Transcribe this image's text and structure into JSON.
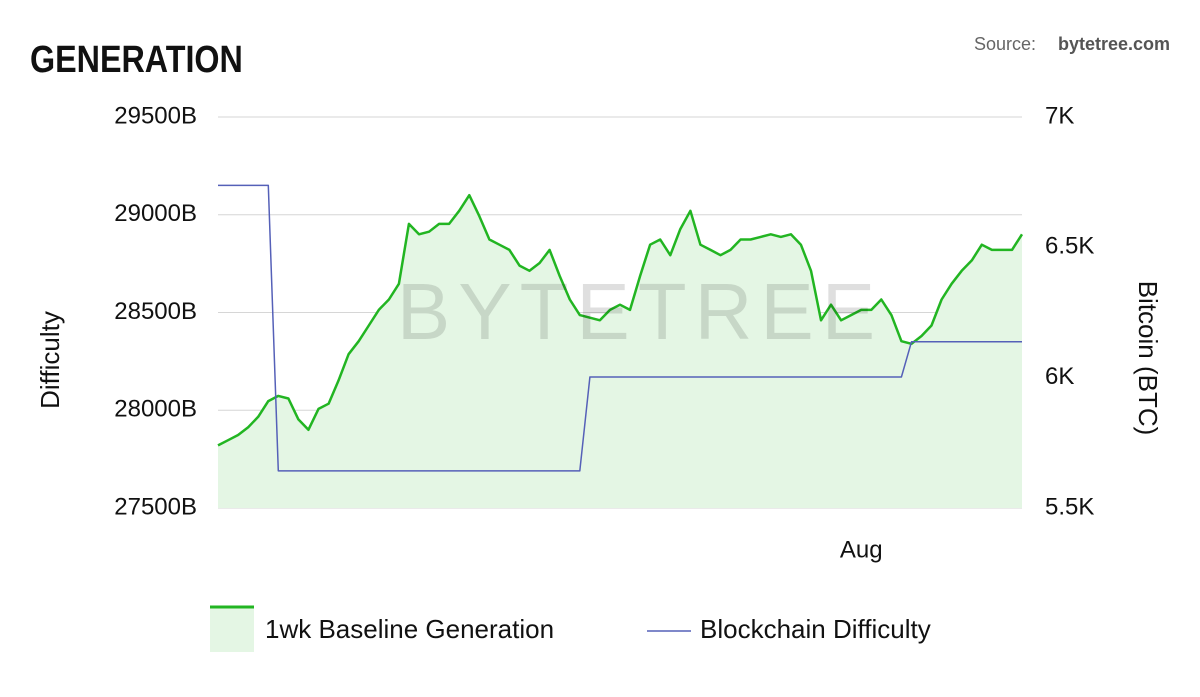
{
  "chart_data": {
    "type": "line",
    "title": "GENERATION",
    "source_label": "Source:",
    "source_site": "bytetree.com",
    "watermark": "BYTETREE",
    "y_label": "Difficulty",
    "y2_label": "Bitcoin (BTC)",
    "categories": [
      null,
      null,
      null,
      null,
      null,
      null,
      null,
      null,
      null,
      null,
      null,
      null,
      null,
      null,
      null,
      null,
      null,
      null,
      null,
      null,
      null,
      null,
      null,
      null,
      null,
      null,
      null,
      null,
      null,
      null,
      null,
      null,
      null,
      null,
      null,
      null,
      null,
      null,
      null,
      null,
      null,
      null,
      null,
      null,
      null,
      null,
      null,
      null,
      null,
      null,
      null,
      null,
      null,
      null,
      null,
      null,
      null,
      null,
      null,
      null,
      null,
      null,
      null,
      null,
      "Aug",
      null,
      null,
      null,
      null,
      null,
      null,
      null,
      null,
      null,
      null,
      null,
      null,
      null,
      null,
      null,
      null
    ],
    "ylim": [
      27500,
      29500
    ],
    "yticks": [
      {
        "value": 27500,
        "label": "27500B"
      },
      {
        "value": 28000,
        "label": "28000B"
      },
      {
        "value": 28500,
        "label": "28500B"
      },
      {
        "value": 29000,
        "label": "29000B"
      },
      {
        "value": 29500,
        "label": "29500B"
      }
    ],
    "y2lim": [
      5500,
      7000
    ],
    "y2ticks": [
      {
        "value": 5500,
        "label": "5.5K"
      },
      {
        "value": 6000,
        "label": "6K"
      },
      {
        "value": 6500,
        "label": "6.5K"
      },
      {
        "value": 7000,
        "label": "7K"
      }
    ],
    "grid": true,
    "series": [
      {
        "name": "1wk Baseline Generation",
        "color": "#22b522",
        "fill": "#e4f6e4",
        "axis": "y2",
        "values": [
          5740,
          5760,
          5780,
          5810,
          5850,
          5910,
          5930,
          5920,
          5840,
          5800,
          5880,
          5900,
          5990,
          6090,
          6140,
          6200,
          6260,
          6300,
          6360,
          6590,
          6550,
          6560,
          6590,
          6590,
          6640,
          6700,
          6620,
          6530,
          6510,
          6490,
          6430,
          6410,
          6440,
          6490,
          6390,
          6300,
          6240,
          6230,
          6220,
          6260,
          6280,
          6260,
          6390,
          6510,
          6530,
          6470,
          6570,
          6640,
          6510,
          6490,
          6470,
          6490,
          6530,
          6530,
          6540,
          6550,
          6540,
          6550,
          6510,
          6410,
          6220,
          6280,
          6220,
          6240,
          6260,
          6260,
          6300,
          6240,
          6140,
          6130,
          6160,
          6200,
          6300,
          6360,
          6410,
          6450,
          6510,
          6490,
          6490,
          6490,
          6550
        ]
      },
      {
        "name": "Blockchain Difficulty",
        "color": "#5560b8",
        "axis": "y",
        "values": [
          29150,
          29150,
          29150,
          29150,
          29150,
          29150,
          27690,
          27690,
          27690,
          27690,
          27690,
          27690,
          27690,
          27690,
          27690,
          27690,
          27690,
          27690,
          27690,
          27690,
          27690,
          27690,
          27690,
          27690,
          27690,
          27690,
          27690,
          27690,
          27690,
          27690,
          27690,
          27690,
          27690,
          27690,
          27690,
          27690,
          27690,
          28170,
          28170,
          28170,
          28170,
          28170,
          28170,
          28170,
          28170,
          28170,
          28170,
          28170,
          28170,
          28170,
          28170,
          28170,
          28170,
          28170,
          28170,
          28170,
          28170,
          28170,
          28170,
          28170,
          28170,
          28170,
          28170,
          28170,
          28170,
          28170,
          28170,
          28170,
          28170,
          28350,
          28350,
          28350,
          28350,
          28350,
          28350,
          28350,
          28350,
          28350,
          28350,
          28350,
          28350
        ]
      }
    ]
  }
}
